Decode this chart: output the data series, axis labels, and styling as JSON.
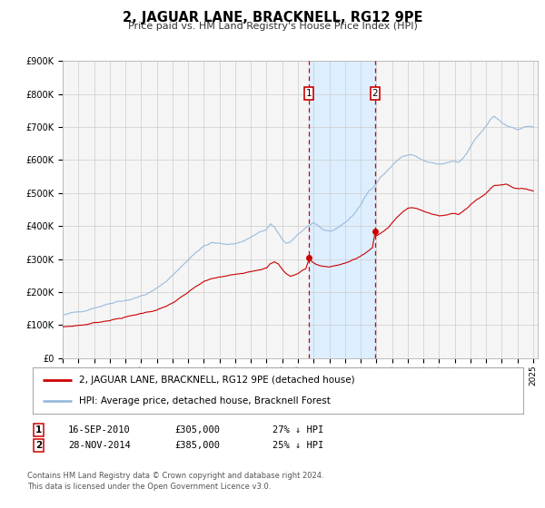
{
  "title": "2, JAGUAR LANE, BRACKNELL, RG12 9PE",
  "subtitle": "Price paid vs. HM Land Registry's House Price Index (HPI)",
  "ylim": [
    0,
    900000
  ],
  "yticks": [
    0,
    100000,
    200000,
    300000,
    400000,
    500000,
    600000,
    700000,
    800000,
    900000
  ],
  "ytick_labels": [
    "£0",
    "£100K",
    "£200K",
    "£300K",
    "£400K",
    "£500K",
    "£600K",
    "£700K",
    "£800K",
    "£900K"
  ],
  "xlim_start": 1995.0,
  "xlim_end": 2025.3,
  "transaction1_date": 2010.71,
  "transaction1_price": 305000,
  "transaction2_date": 2014.91,
  "transaction2_price": 385000,
  "color_property": "#cc0000",
  "color_hpi": "#99bbdd",
  "color_vline": "#cc0000",
  "color_shade": "#ddeeff",
  "legend_property": "2, JAGUAR LANE, BRACKNELL, RG12 9PE (detached house)",
  "legend_hpi": "HPI: Average price, detached house, Bracknell Forest",
  "footer1": "Contains HM Land Registry data © Crown copyright and database right 2024.",
  "footer2": "This data is licensed under the Open Government Licence v3.0.",
  "background_color": "#ffffff",
  "plot_background": "#f5f5f5",
  "hpi_anchors": [
    [
      1995.0,
      130000
    ],
    [
      1995.5,
      135000
    ],
    [
      1996.0,
      138000
    ],
    [
      1996.5,
      145000
    ],
    [
      1997.0,
      155000
    ],
    [
      1997.5,
      162000
    ],
    [
      1998.0,
      170000
    ],
    [
      1998.5,
      178000
    ],
    [
      1999.0,
      182000
    ],
    [
      1999.5,
      188000
    ],
    [
      2000.0,
      196000
    ],
    [
      2000.5,
      205000
    ],
    [
      2001.0,
      218000
    ],
    [
      2001.5,
      235000
    ],
    [
      2002.0,
      258000
    ],
    [
      2002.5,
      280000
    ],
    [
      2003.0,
      305000
    ],
    [
      2003.5,
      330000
    ],
    [
      2004.0,
      348000
    ],
    [
      2004.5,
      358000
    ],
    [
      2005.0,
      355000
    ],
    [
      2005.5,
      350000
    ],
    [
      2006.0,
      355000
    ],
    [
      2006.5,
      362000
    ],
    [
      2007.0,
      375000
    ],
    [
      2007.5,
      390000
    ],
    [
      2008.0,
      398000
    ],
    [
      2008.25,
      415000
    ],
    [
      2008.5,
      405000
    ],
    [
      2008.75,
      385000
    ],
    [
      2009.0,
      365000
    ],
    [
      2009.25,
      355000
    ],
    [
      2009.5,
      358000
    ],
    [
      2009.75,
      368000
    ],
    [
      2010.0,
      378000
    ],
    [
      2010.25,
      388000
    ],
    [
      2010.5,
      398000
    ],
    [
      2010.75,
      408000
    ],
    [
      2011.0,
      415000
    ],
    [
      2011.25,
      408000
    ],
    [
      2011.5,
      398000
    ],
    [
      2011.75,
      392000
    ],
    [
      2012.0,
      390000
    ],
    [
      2012.25,
      392000
    ],
    [
      2012.5,
      395000
    ],
    [
      2012.75,
      402000
    ],
    [
      2013.0,
      410000
    ],
    [
      2013.25,
      420000
    ],
    [
      2013.5,
      432000
    ],
    [
      2013.75,
      448000
    ],
    [
      2014.0,
      465000
    ],
    [
      2014.25,
      488000
    ],
    [
      2014.5,
      505000
    ],
    [
      2014.75,
      515000
    ],
    [
      2015.0,
      530000
    ],
    [
      2015.25,
      548000
    ],
    [
      2015.5,
      560000
    ],
    [
      2015.75,
      572000
    ],
    [
      2016.0,
      582000
    ],
    [
      2016.25,
      595000
    ],
    [
      2016.5,
      605000
    ],
    [
      2016.75,
      612000
    ],
    [
      2017.0,
      618000
    ],
    [
      2017.25,
      620000
    ],
    [
      2017.5,
      615000
    ],
    [
      2017.75,
      608000
    ],
    [
      2018.0,
      602000
    ],
    [
      2018.25,
      598000
    ],
    [
      2018.5,
      595000
    ],
    [
      2018.75,
      592000
    ],
    [
      2019.0,
      590000
    ],
    [
      2019.25,
      592000
    ],
    [
      2019.5,
      595000
    ],
    [
      2019.75,
      598000
    ],
    [
      2020.0,
      598000
    ],
    [
      2020.25,
      595000
    ],
    [
      2020.5,
      605000
    ],
    [
      2020.75,
      620000
    ],
    [
      2021.0,
      640000
    ],
    [
      2021.25,
      658000
    ],
    [
      2021.5,
      672000
    ],
    [
      2021.75,
      685000
    ],
    [
      2022.0,
      700000
    ],
    [
      2022.25,
      718000
    ],
    [
      2022.5,
      728000
    ],
    [
      2022.75,
      720000
    ],
    [
      2023.0,
      710000
    ],
    [
      2023.25,
      702000
    ],
    [
      2023.5,
      698000
    ],
    [
      2023.75,
      695000
    ],
    [
      2024.0,
      692000
    ],
    [
      2024.25,
      695000
    ],
    [
      2024.5,
      700000
    ],
    [
      2024.75,
      702000
    ],
    [
      2025.0,
      700000
    ]
  ],
  "prop_anchors": [
    [
      1995.0,
      95000
    ],
    [
      1995.5,
      97000
    ],
    [
      1996.0,
      100000
    ],
    [
      1996.5,
      103000
    ],
    [
      1997.0,
      108000
    ],
    [
      1997.5,
      112000
    ],
    [
      1998.0,
      118000
    ],
    [
      1998.5,
      122000
    ],
    [
      1999.0,
      128000
    ],
    [
      1999.5,
      132000
    ],
    [
      2000.0,
      138000
    ],
    [
      2000.5,
      144000
    ],
    [
      2001.0,
      150000
    ],
    [
      2001.5,
      158000
    ],
    [
      2002.0,
      170000
    ],
    [
      2002.5,
      185000
    ],
    [
      2003.0,
      200000
    ],
    [
      2003.5,
      218000
    ],
    [
      2004.0,
      232000
    ],
    [
      2004.5,
      240000
    ],
    [
      2005.0,
      245000
    ],
    [
      2005.5,
      248000
    ],
    [
      2006.0,
      252000
    ],
    [
      2006.5,
      258000
    ],
    [
      2007.0,
      265000
    ],
    [
      2007.5,
      272000
    ],
    [
      2008.0,
      278000
    ],
    [
      2008.25,
      290000
    ],
    [
      2008.5,
      295000
    ],
    [
      2008.75,
      288000
    ],
    [
      2009.0,
      272000
    ],
    [
      2009.25,
      260000
    ],
    [
      2009.5,
      252000
    ],
    [
      2009.75,
      255000
    ],
    [
      2010.0,
      260000
    ],
    [
      2010.25,
      268000
    ],
    [
      2010.5,
      275000
    ],
    [
      2010.71,
      305000
    ],
    [
      2010.85,
      298000
    ],
    [
      2011.0,
      292000
    ],
    [
      2011.25,
      287000
    ],
    [
      2011.5,
      283000
    ],
    [
      2011.75,
      282000
    ],
    [
      2012.0,
      282000
    ],
    [
      2012.25,
      284000
    ],
    [
      2012.5,
      287000
    ],
    [
      2012.75,
      290000
    ],
    [
      2013.0,
      294000
    ],
    [
      2013.25,
      298000
    ],
    [
      2013.5,
      303000
    ],
    [
      2013.75,
      308000
    ],
    [
      2014.0,
      315000
    ],
    [
      2014.25,
      322000
    ],
    [
      2014.5,
      330000
    ],
    [
      2014.75,
      338000
    ],
    [
      2014.91,
      385000
    ],
    [
      2015.0,
      375000
    ],
    [
      2015.25,
      382000
    ],
    [
      2015.5,
      390000
    ],
    [
      2015.75,
      400000
    ],
    [
      2016.0,
      415000
    ],
    [
      2016.25,
      428000
    ],
    [
      2016.5,
      440000
    ],
    [
      2016.75,
      450000
    ],
    [
      2017.0,
      458000
    ],
    [
      2017.25,
      460000
    ],
    [
      2017.5,
      458000
    ],
    [
      2017.75,
      453000
    ],
    [
      2018.0,
      448000
    ],
    [
      2018.25,
      445000
    ],
    [
      2018.5,
      443000
    ],
    [
      2018.75,
      440000
    ],
    [
      2019.0,
      438000
    ],
    [
      2019.25,
      438000
    ],
    [
      2019.5,
      440000
    ],
    [
      2019.75,
      442000
    ],
    [
      2020.0,
      442000
    ],
    [
      2020.25,
      440000
    ],
    [
      2020.5,
      448000
    ],
    [
      2020.75,
      458000
    ],
    [
      2021.0,
      470000
    ],
    [
      2021.25,
      480000
    ],
    [
      2021.5,
      488000
    ],
    [
      2021.75,
      495000
    ],
    [
      2022.0,
      505000
    ],
    [
      2022.25,
      518000
    ],
    [
      2022.5,
      528000
    ],
    [
      2022.75,
      530000
    ],
    [
      2023.0,
      532000
    ],
    [
      2023.25,
      535000
    ],
    [
      2023.5,
      530000
    ],
    [
      2023.75,
      525000
    ],
    [
      2024.0,
      522000
    ],
    [
      2024.25,
      520000
    ],
    [
      2024.5,
      520000
    ],
    [
      2024.75,
      518000
    ],
    [
      2025.0,
      515000
    ]
  ]
}
